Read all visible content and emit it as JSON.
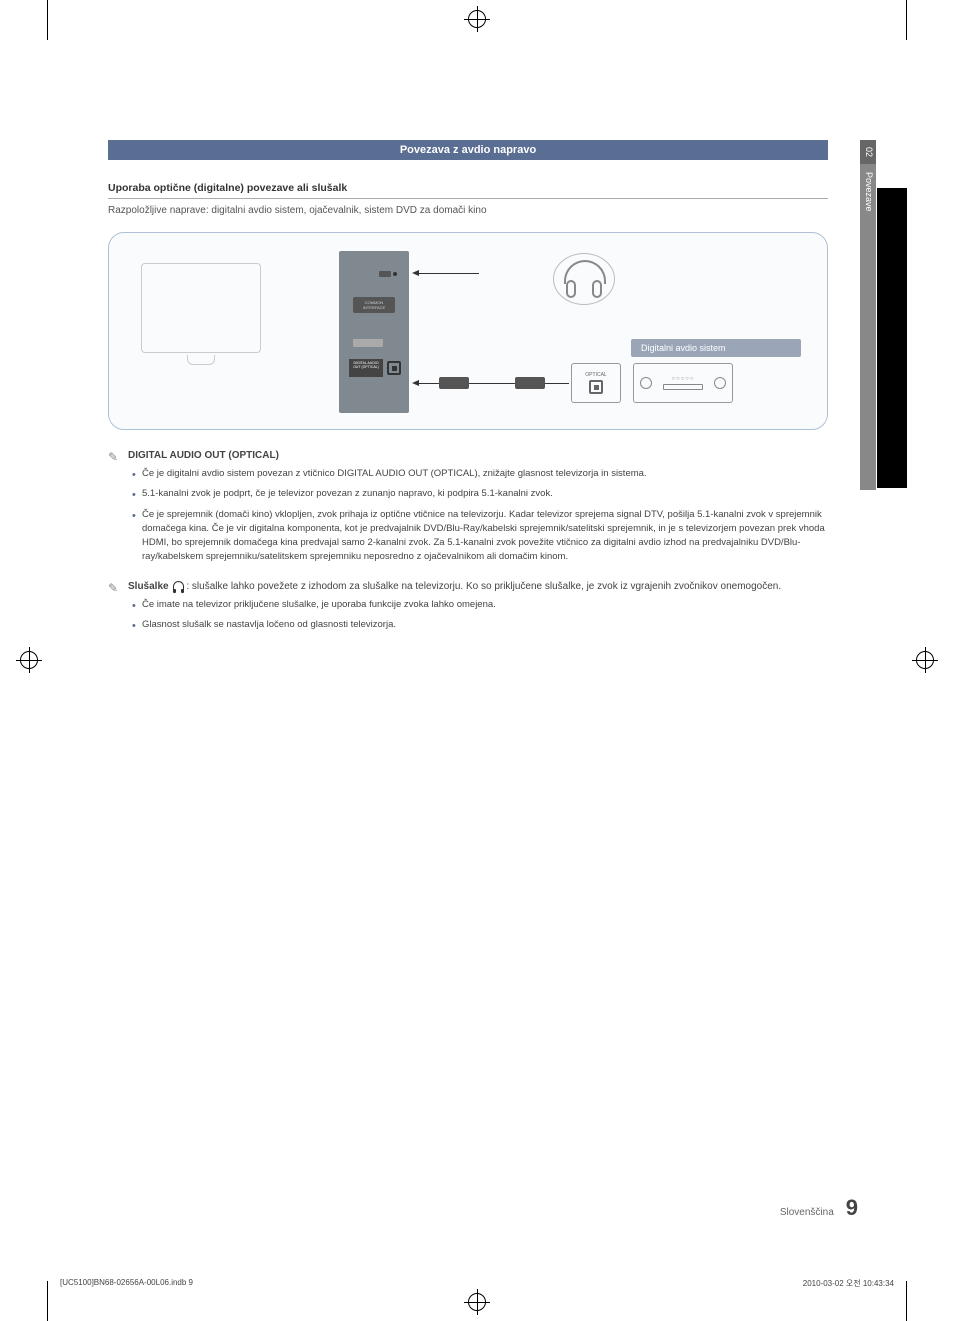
{
  "page": {
    "language_label": "Slovenščina",
    "page_number": "9",
    "print_file": "[UC5100]BN68-02656A-00L06.indb   9",
    "print_timestamp": "2010-03-02   오전 10:43:34"
  },
  "sidebar": {
    "chapter_num": "02",
    "chapter_label": "Povezave"
  },
  "section": {
    "header": "Povezava z avdio napravo",
    "subheading": "Uporaba optične (digitalne) povezave ali slušalk",
    "description": "Razpoložljive naprave: digitalni avdio sistem, ojačevalnik, sistem DVD za domači kino"
  },
  "diagram": {
    "panel_ci_label": "COMMON INTERFACE",
    "panel_usb_label": "USB 2",
    "panel_audio_out_label": "DIGITAL AUDIO OUT (OPTICAL)",
    "amp_title": "Digitalni avdio sistem",
    "amp_port_label": "OPTICAL"
  },
  "notes": [
    {
      "title": "DIGITAL AUDIO OUT (OPTICAL)",
      "items": [
        "Če je digitalni avdio sistem povezan z vtičnico DIGITAL AUDIO OUT (OPTICAL), znižajte glasnost televizorja in sistema.",
        "5.1-kanalni zvok je podprt, če je televizor povezan z zunanjo napravo, ki podpira 5.1-kanalni zvok.",
        "Če je sprejemnik (domači kino) vklopljen, zvok prihaja iz optične vtičnice na televizorju. Kadar televizor sprejema signal DTV, pošilja 5.1-kanalni zvok v sprejemnik domačega kina. Če je vir digitalna komponenta, kot je predvajalnik DVD/Blu-Ray/kabelski sprejemnik/satelitski sprejemnik, in je s televizorjem povezan prek vhoda HDMI, bo sprejemnik domačega kina predvajal samo 2-kanalni zvok. Za 5.1-kanalni zvok povežite vtičnico za digitalni avdio izhod na predvajalniku DVD/Blu-ray/kabelskem sprejemniku/satelitskem sprejemniku neposredno z ojačevalnikom ali domačim kinom."
      ]
    },
    {
      "title_prefix": "Slušalke",
      "title_suffix": ": slušalke lahko povežete z izhodom za slušalke na televizorju. Ko so priključene slušalke, je zvok iz vgrajenih zvočnikov onemogočen.",
      "items": [
        "Če imate na televizor priključene slušalke, je uporaba funkcije zvoka lahko omejena.",
        "Glasnost slušalk se nastavlja ločeno od glasnosti televizorja."
      ]
    }
  ]
}
